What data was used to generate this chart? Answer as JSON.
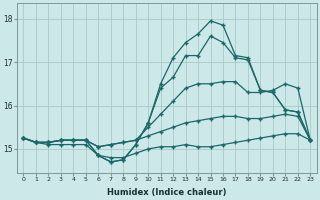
{
  "xlabel": "Humidex (Indice chaleur)",
  "background_color": "#cce8e8",
  "grid_color": "#aac8c8",
  "line_color": "#1a6868",
  "x_values": [
    0,
    1,
    2,
    3,
    4,
    5,
    6,
    7,
    8,
    9,
    10,
    11,
    12,
    13,
    14,
    15,
    16,
    17,
    18,
    19,
    20,
    21,
    22,
    23
  ],
  "line1": [
    15.25,
    15.15,
    15.1,
    15.1,
    15.1,
    15.1,
    14.85,
    14.8,
    14.8,
    14.9,
    15.0,
    15.05,
    15.05,
    15.1,
    15.05,
    15.05,
    15.1,
    15.15,
    15.2,
    15.25,
    15.3,
    15.35,
    15.35,
    15.2
  ],
  "line2": [
    15.25,
    15.15,
    15.15,
    15.2,
    15.2,
    15.2,
    15.05,
    15.1,
    15.15,
    15.2,
    15.3,
    15.4,
    15.5,
    15.6,
    15.65,
    15.7,
    15.75,
    15.75,
    15.7,
    15.7,
    15.75,
    15.8,
    15.75,
    15.2
  ],
  "line3": [
    15.25,
    15.15,
    15.15,
    15.2,
    15.2,
    15.2,
    15.05,
    15.1,
    15.15,
    15.2,
    15.5,
    15.8,
    16.1,
    16.4,
    16.5,
    16.5,
    16.55,
    16.55,
    16.3,
    16.3,
    16.35,
    16.5,
    16.4,
    15.2
  ],
  "line4": [
    15.25,
    15.15,
    15.15,
    15.2,
    15.2,
    15.2,
    14.85,
    14.7,
    14.75,
    15.1,
    15.6,
    16.4,
    16.65,
    17.15,
    17.15,
    17.6,
    17.45,
    17.1,
    17.05,
    16.35,
    16.3,
    15.9,
    15.85,
    15.2
  ],
  "line5": [
    15.25,
    15.15,
    15.15,
    15.2,
    15.2,
    15.2,
    14.85,
    14.7,
    14.75,
    15.1,
    15.6,
    16.5,
    17.1,
    17.45,
    17.65,
    17.95,
    17.85,
    17.15,
    17.1,
    16.35,
    16.3,
    15.9,
    15.85,
    15.2
  ],
  "xlim": [
    -0.5,
    23.5
  ],
  "ylim": [
    14.45,
    18.35
  ],
  "yticks": [
    15,
    16,
    17,
    18
  ],
  "xticks": [
    0,
    1,
    2,
    3,
    4,
    5,
    6,
    7,
    8,
    9,
    10,
    11,
    12,
    13,
    14,
    15,
    16,
    17,
    18,
    19,
    20,
    21,
    22,
    23
  ]
}
